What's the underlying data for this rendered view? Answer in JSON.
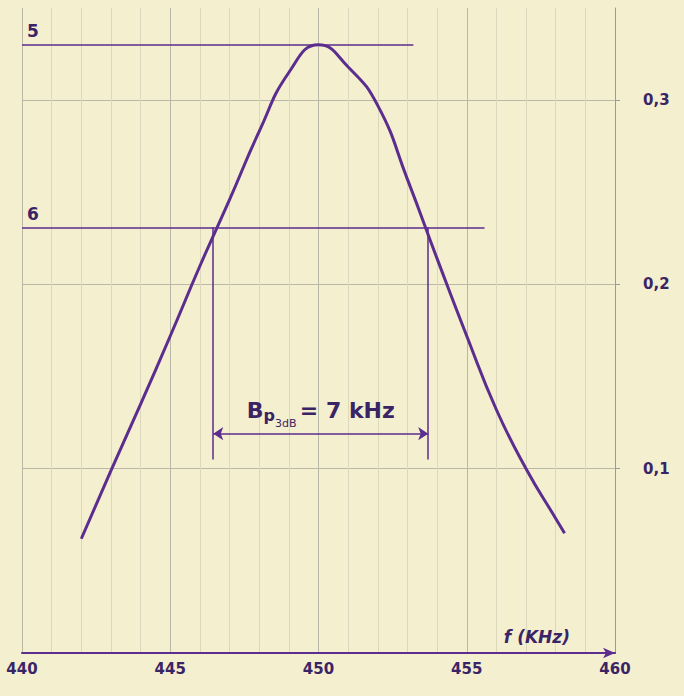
{
  "chart_data": {
    "type": "line",
    "x_label": "f (KHz)",
    "xlim": [
      440,
      460
    ],
    "xticks": [
      440,
      445,
      450,
      455,
      460
    ],
    "ylim": [
      0,
      0.35
    ],
    "yticks": [
      {
        "value": 0.1,
        "label": "0,1"
      },
      {
        "value": 0.2,
        "label": "0,2"
      },
      {
        "value": 0.3,
        "label": "0,3"
      }
    ],
    "grid": true,
    "color": "#5b2d8e",
    "x": [
      442,
      443,
      444,
      445,
      446,
      447,
      448,
      449,
      450,
      451,
      452,
      453,
      454,
      455,
      456,
      457,
      458,
      458.3
    ],
    "values": [
      0.062,
      0.099,
      0.135,
      0.172,
      0.21,
      0.246,
      0.283,
      0.315,
      0.33,
      0.318,
      0.297,
      0.257,
      0.214,
      0.172,
      0.132,
      0.1,
      0.073,
      0.065
    ],
    "reference_lines": [
      {
        "label": "5",
        "y": 0.33,
        "x": [
          440,
          453.2
        ]
      },
      {
        "label": "6",
        "y": 0.231,
        "x": [
          440,
          455.6
        ]
      }
    ],
    "bandwidth": {
      "symbol": "B",
      "subscript": "p",
      "sub_subscript": "3dB",
      "text": "= 7 kHz",
      "x": [
        446.45,
        453.7
      ],
      "y": 0.119,
      "from_y": 0.231,
      "to_y": 0.105
    }
  }
}
